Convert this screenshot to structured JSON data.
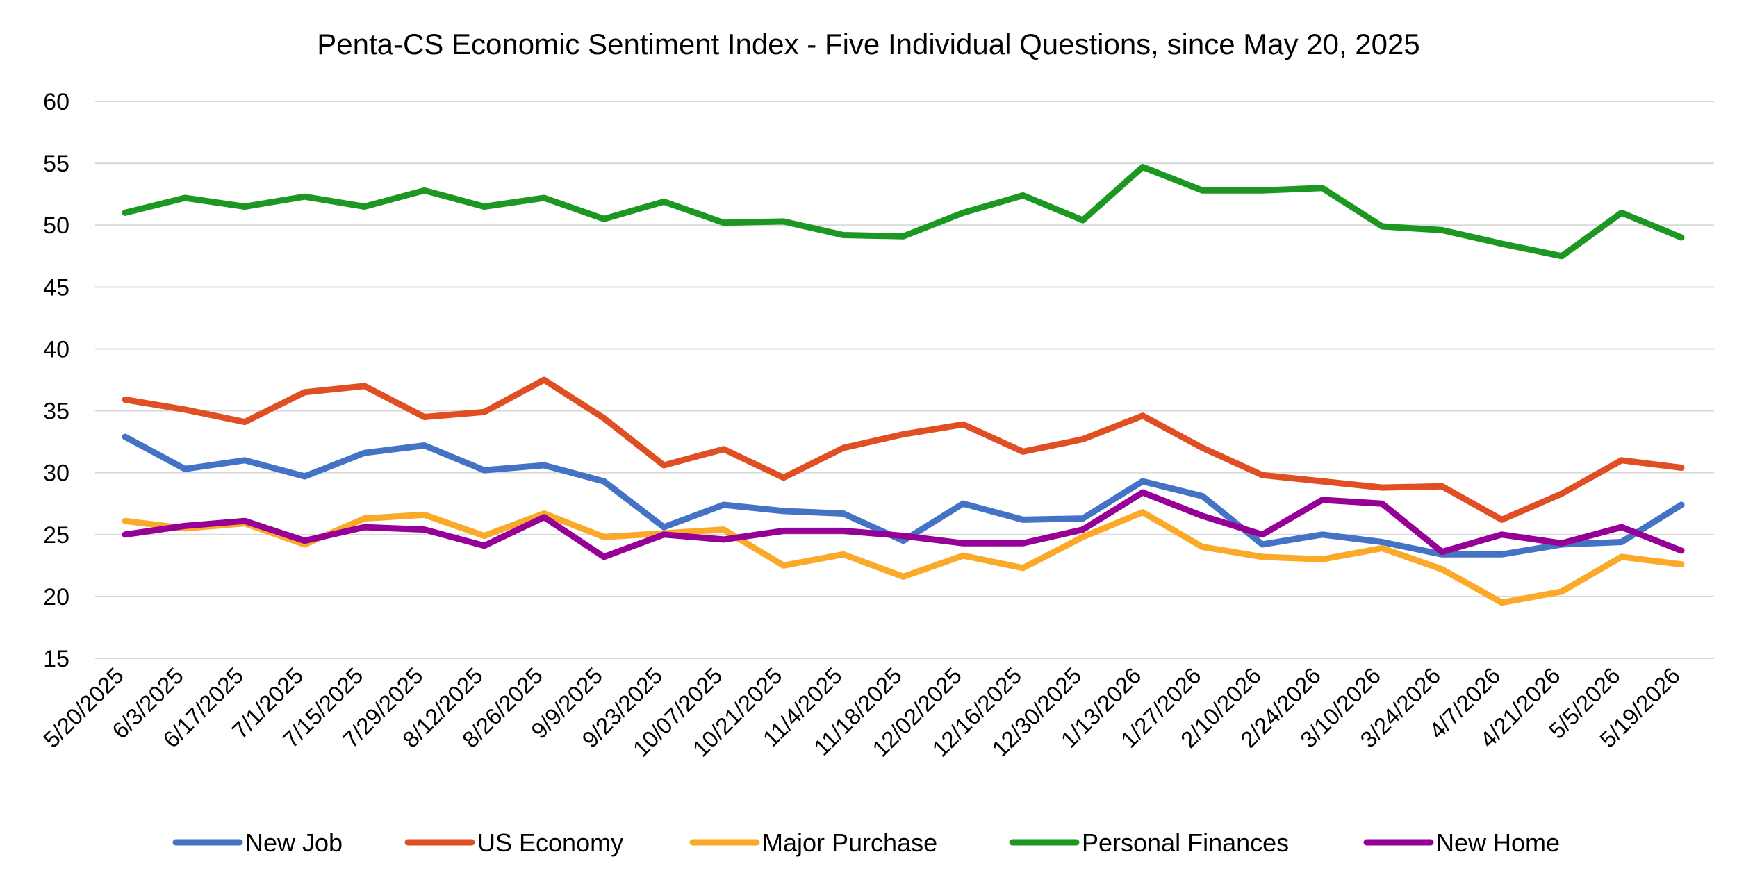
{
  "chart_data": {
    "type": "line",
    "title": "Penta-CS Economic Sentiment Index - Five Individual Questions, since May 20, 2025",
    "xlabel": "",
    "ylabel": "",
    "ylim": [
      15,
      60
    ],
    "yticks": [
      15,
      20,
      25,
      30,
      35,
      40,
      45,
      50,
      55,
      60
    ],
    "grid": true,
    "legend_position": "bottom",
    "categories": [
      "5/20/2025",
      "6/3/2025",
      "6/17/2025",
      "7/1/2025",
      "7/15/2025",
      "7/29/2025",
      "8/12/2025",
      "8/26/2025",
      "9/9/2025",
      "9/23/2025",
      "10/07/2025",
      "10/21/2025",
      "11/4/2025",
      "11/18/2025",
      "12/02/2025",
      "12/16/2025",
      "12/30/2025",
      "1/13/2026",
      "1/27/2026",
      "2/10/2026",
      "2/24/2026",
      "3/10/2026",
      "3/24/2026",
      "4/7/2026",
      "4/21/2026",
      "5/5/2026",
      "5/19/2026"
    ],
    "series": [
      {
        "name": "New Job",
        "color": "#4472c4",
        "values": [
          32.9,
          30.3,
          31.0,
          29.7,
          31.6,
          32.2,
          30.2,
          30.6,
          29.3,
          25.6,
          27.4,
          26.9,
          26.7,
          24.5,
          27.5,
          26.2,
          26.3,
          29.3,
          28.1,
          24.2,
          25.0,
          24.4,
          23.4,
          23.4,
          24.2,
          24.4,
          27.4
        ]
      },
      {
        "name": "US Economy",
        "color": "#e04e24",
        "values": [
          35.9,
          35.1,
          34.1,
          36.5,
          37.0,
          34.5,
          34.9,
          37.5,
          34.4,
          30.6,
          31.9,
          29.6,
          32.0,
          33.1,
          33.9,
          31.7,
          32.7,
          34.6,
          32.0,
          29.8,
          29.3,
          28.8,
          28.9,
          26.2,
          28.3,
          31.0,
          30.4
        ]
      },
      {
        "name": "Major Purchase",
        "color": "#fba928",
        "values": [
          26.1,
          25.5,
          25.9,
          24.2,
          26.3,
          26.6,
          24.9,
          26.7,
          24.8,
          25.1,
          25.4,
          22.5,
          23.4,
          21.6,
          23.3,
          22.3,
          24.8,
          26.8,
          24.0,
          23.2,
          23.0,
          23.9,
          22.2,
          19.5,
          20.4,
          23.2,
          22.6
        ]
      },
      {
        "name": "Personal Finances",
        "color": "#1b9722",
        "values": [
          51.0,
          52.2,
          51.5,
          52.3,
          51.5,
          52.8,
          51.5,
          52.2,
          50.5,
          51.9,
          50.2,
          50.3,
          49.2,
          49.1,
          51.0,
          52.4,
          50.4,
          54.7,
          52.8,
          52.8,
          53.0,
          49.9,
          49.6,
          48.5,
          47.5,
          51.0,
          49.0
        ]
      },
      {
        "name": "New Home",
        "color": "#960096",
        "values": [
          25.0,
          25.7,
          26.1,
          24.5,
          25.6,
          25.4,
          24.1,
          26.4,
          23.2,
          25.0,
          24.6,
          25.3,
          25.3,
          24.9,
          24.3,
          24.3,
          25.4,
          28.4,
          26.5,
          25.0,
          27.8,
          27.5,
          23.6,
          25.0,
          24.3,
          25.6,
          23.7
        ]
      }
    ]
  }
}
